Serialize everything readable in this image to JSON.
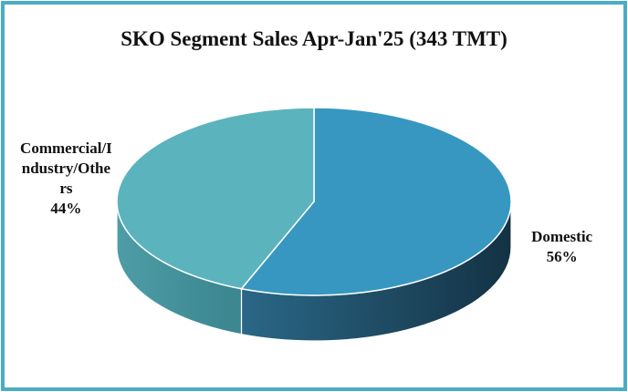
{
  "chart_data": {
    "type": "pie3d",
    "title": "SKO Segment Sales Apr-Jan'25 (343 TMT)",
    "categories": [
      "Domestic",
      "Commercial/Industry/Others"
    ],
    "values": [
      56,
      44
    ],
    "value_labels": [
      "56%",
      "44%"
    ],
    "colors": [
      "#3797c0",
      "#5bb3bd"
    ]
  }
}
